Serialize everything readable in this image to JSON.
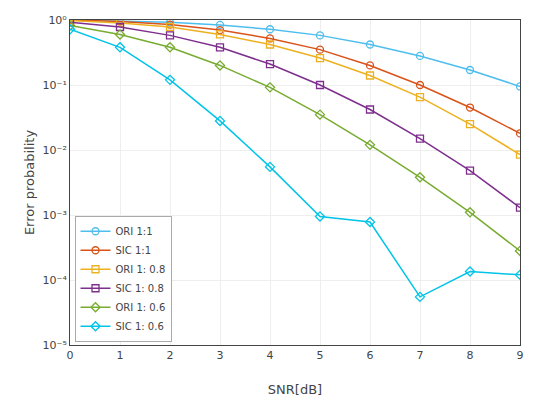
{
  "chart_data": {
    "type": "line",
    "xlabel": "SNR[dB]",
    "ylabel": "Error probability",
    "log": "y",
    "grid": true,
    "legend": "lower left",
    "xlim": [
      0,
      9
    ],
    "xticks": [
      0,
      1,
      2,
      3,
      4,
      5,
      6,
      7,
      8,
      9
    ],
    "ylim": [
      1e-05,
      1
    ],
    "yticks": [
      {
        "value": 1e-05,
        "label": "10⁻⁵"
      },
      {
        "value": 0.0001,
        "label": "10⁻⁴"
      },
      {
        "value": 0.001,
        "label": "10⁻³"
      },
      {
        "value": 0.01,
        "label": "10⁻²"
      },
      {
        "value": 0.1,
        "label": "10⁻¹"
      },
      {
        "value": 1,
        "label": "10⁰"
      }
    ],
    "x": [
      0,
      1,
      2,
      3,
      4,
      5,
      6,
      7,
      8,
      9
    ],
    "series": [
      {
        "name": "ORI 1:1",
        "color": "#4DBEEE",
        "marker": "circle",
        "values": [
          1.0,
          0.97,
          0.92,
          0.84,
          0.72,
          0.58,
          0.42,
          0.28,
          0.17,
          0.095
        ]
      },
      {
        "name": "SIC 1:1",
        "color": "#D95319",
        "marker": "circle",
        "values": [
          1.0,
          0.95,
          0.85,
          0.7,
          0.52,
          0.35,
          0.2,
          0.1,
          0.045,
          0.018
        ]
      },
      {
        "name": "ORI 1: 0.8",
        "color": "#EDB120",
        "marker": "square",
        "values": [
          0.98,
          0.9,
          0.78,
          0.6,
          0.42,
          0.26,
          0.14,
          0.065,
          0.025,
          0.0085
        ]
      },
      {
        "name": "SIC 1: 0.8",
        "color": "#7E2F8E",
        "marker": "square",
        "values": [
          0.92,
          0.78,
          0.58,
          0.38,
          0.21,
          0.1,
          0.042,
          0.015,
          0.0048,
          0.0013
        ]
      },
      {
        "name": "ORI 1: 0.6",
        "color": "#77AC30",
        "marker": "diamond",
        "values": [
          0.82,
          0.6,
          0.38,
          0.2,
          0.092,
          0.035,
          0.012,
          0.0038,
          0.0011,
          0.00028
        ]
      },
      {
        "name": "SIC 1: 0.6",
        "color": "#00C4E8",
        "marker": "diamond",
        "values": [
          0.72,
          0.38,
          0.12,
          0.028,
          0.0055,
          0.00095,
          0.00078,
          5.5e-05,
          0.000135,
          0.00012
        ]
      }
    ]
  }
}
